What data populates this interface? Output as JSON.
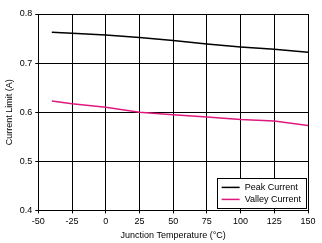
{
  "chart_data": {
    "type": "line",
    "x_label": "Junction Temperature (°C)",
    "y_label": "Current Limit (A)",
    "x": [
      -40,
      -25,
      0,
      25,
      50,
      75,
      100,
      125,
      150
    ],
    "series": [
      {
        "name": "Peak Current",
        "color": "#000000",
        "values": [
          0.763,
          0.761,
          0.757,
          0.752,
          0.746,
          0.739,
          0.733,
          0.728,
          0.722
        ]
      },
      {
        "name": "Valley Current",
        "color": "#e0197e",
        "values": [
          0.623,
          0.617,
          0.61,
          0.6,
          0.595,
          0.59,
          0.585,
          0.582,
          0.573
        ]
      }
    ],
    "xlim": [
      -50,
      150
    ],
    "xticks": [
      -50,
      -25,
      0,
      25,
      50,
      75,
      100,
      125,
      150
    ],
    "ylim": [
      0.4,
      0.8
    ],
    "yticks": [
      0.4,
      0.5,
      0.6,
      0.7,
      0.8
    ],
    "grid": true,
    "legend": "lower right"
  }
}
